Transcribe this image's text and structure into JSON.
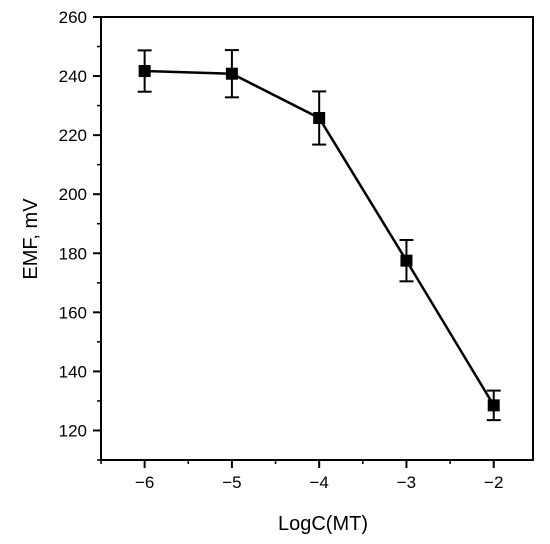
{
  "chart_data": {
    "type": "line",
    "title": "",
    "xlabel": "LogC(MT)",
    "ylabel": "EMF, mV",
    "xlim": [
      -6.5,
      -1.55
    ],
    "ylim": [
      110,
      260
    ],
    "x_ticks": [
      -6,
      -5,
      -4,
      -3,
      -2
    ],
    "x_tick_labels": [
      "−6",
      "−5",
      "−4",
      "−3",
      "−2"
    ],
    "y_ticks": [
      120,
      140,
      160,
      180,
      200,
      220,
      240,
      260
    ],
    "y_tick_labels": [
      "120",
      "140",
      "160",
      "180",
      "200",
      "220",
      "240",
      "260"
    ],
    "grid": false,
    "legend": "none",
    "series": [
      {
        "x": [
          -6,
          -5,
          -4,
          -3,
          -2
        ],
        "y": [
          241.7,
          240.8,
          225.8,
          177.5,
          128.5
        ],
        "error": [
          7,
          8,
          9,
          7,
          5
        ],
        "marker": "square",
        "color": "#000000"
      }
    ]
  }
}
